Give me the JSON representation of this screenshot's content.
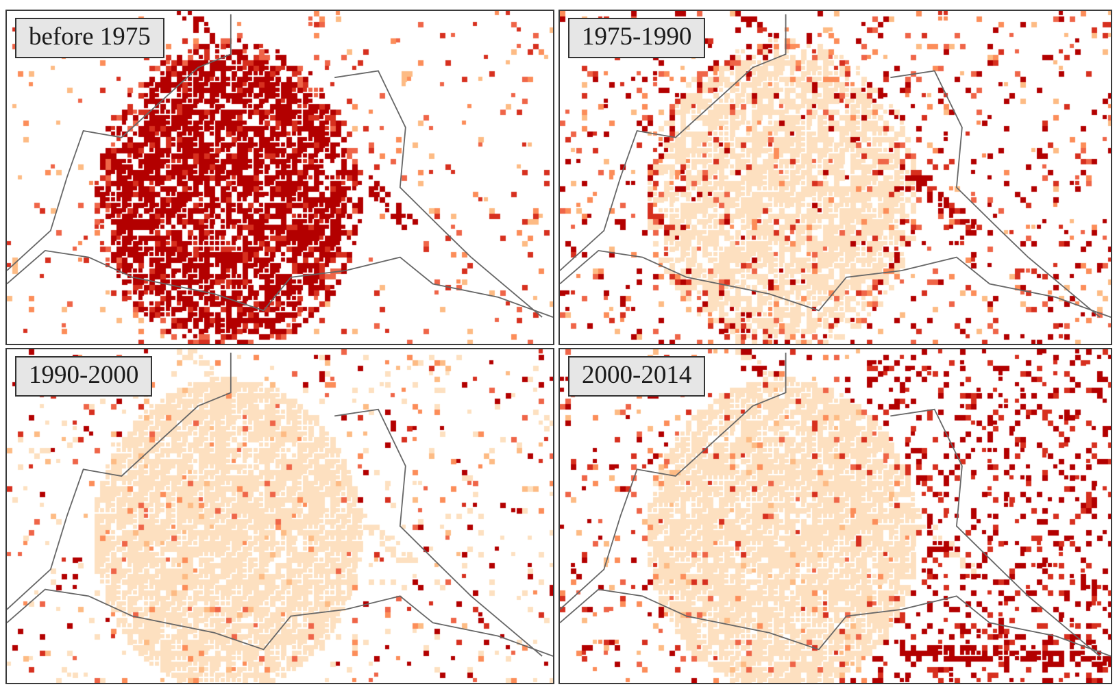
{
  "panels": [
    {
      "label": "before 1975",
      "epoch": "pre1975"
    },
    {
      "label": "1975-1990",
      "epoch": "e1975_1990"
    },
    {
      "label": "1990-2000",
      "epoch": "e1990_2000"
    },
    {
      "label": "2000-2014",
      "epoch": "e2000_2014"
    }
  ],
  "colors": {
    "current_epoch": "#b30000",
    "mid_dark": "#d7301f",
    "mid": "#ef6548",
    "light": "#fc8d59",
    "lighter": "#fdbb84",
    "prior_built": "#fde0c0",
    "border_line": "#666666",
    "background": "#ffffff"
  }
}
